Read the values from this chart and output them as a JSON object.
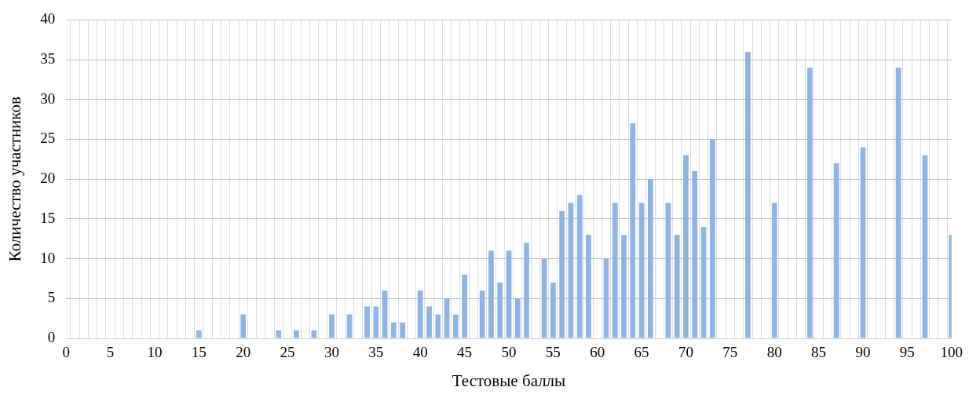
{
  "chart_data": {
    "type": "bar",
    "xlabel": "Тестовые баллы",
    "ylabel": "Количество участников",
    "categories": [
      "0",
      null,
      null,
      null,
      null,
      "5",
      null,
      null,
      null,
      null,
      "10",
      null,
      null,
      null,
      null,
      "15",
      null,
      null,
      null,
      null,
      "20",
      null,
      null,
      null,
      null,
      "25",
      null,
      null,
      null,
      null,
      "30",
      null,
      null,
      null,
      null,
      "35",
      null,
      null,
      null,
      null,
      "40",
      null,
      null,
      null,
      null,
      "45",
      null,
      null,
      null,
      null,
      "50",
      null,
      null,
      null,
      null,
      "55",
      null,
      null,
      null,
      null,
      "60",
      null,
      null,
      null,
      null,
      "65",
      null,
      null,
      null,
      null,
      "70",
      null,
      null,
      null,
      null,
      "75",
      null,
      null,
      null,
      null,
      "80",
      null,
      null,
      null,
      null,
      "85",
      null,
      null,
      null,
      null,
      "90",
      null,
      null,
      null,
      null,
      "95",
      null,
      null,
      null,
      null,
      "100"
    ],
    "values": [
      null,
      null,
      null,
      null,
      null,
      null,
      null,
      null,
      null,
      null,
      null,
      null,
      null,
      null,
      null,
      1,
      null,
      null,
      null,
      null,
      3,
      null,
      null,
      null,
      1,
      null,
      1,
      null,
      1,
      null,
      3,
      null,
      3,
      null,
      4,
      4,
      6,
      2,
      2,
      null,
      6,
      4,
      3,
      5,
      3,
      8,
      null,
      6,
      11,
      7,
      11,
      5,
      12,
      null,
      10,
      7,
      16,
      17,
      18,
      13,
      null,
      10,
      17,
      13,
      27,
      17,
      20,
      null,
      17,
      13,
      23,
      21,
      14,
      25,
      null,
      null,
      null,
      36,
      null,
      null,
      17,
      null,
      null,
      null,
      34,
      null,
      null,
      22,
      null,
      null,
      24,
      null,
      null,
      null,
      34,
      null,
      null,
      23,
      null,
      null,
      13
    ],
    "color": "#8fb4e3",
    "ylim": [
      0,
      40
    ],
    "yticks": [
      0,
      5,
      10,
      15,
      20,
      25,
      30,
      35,
      40
    ],
    "grid": true
  }
}
